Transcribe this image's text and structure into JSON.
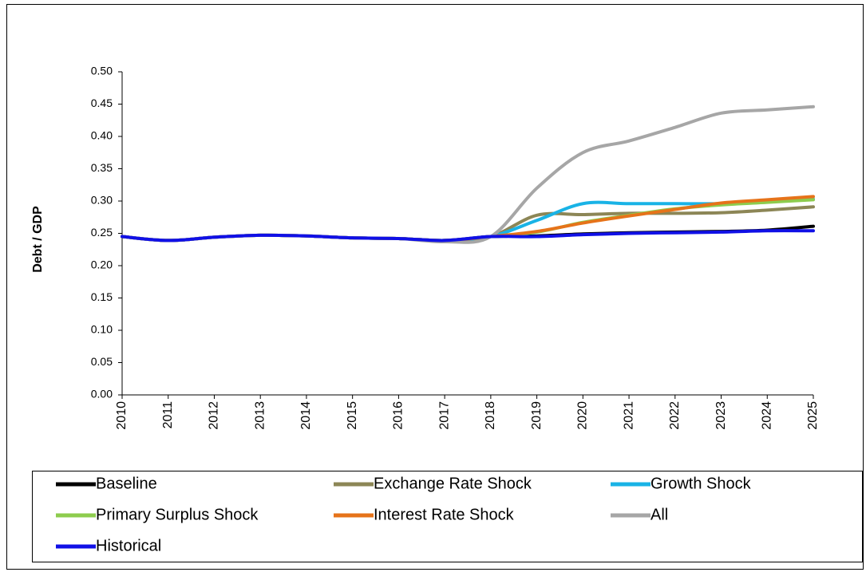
{
  "chart_data": {
    "type": "line",
    "y_label": "Debt / GDP",
    "categories": [
      "2010",
      "2011",
      "2012",
      "2013",
      "2014",
      "2015",
      "2016",
      "2017",
      "2018",
      "2019",
      "2020",
      "2021",
      "2022",
      "2023",
      "2024",
      "2025"
    ],
    "ylim": [
      0,
      0.5
    ],
    "yticks": [
      {
        "value": 0,
        "label": "0.00"
      },
      {
        "value": 0.05,
        "label": "0.05"
      },
      {
        "value": 0.1,
        "label": "0.10"
      },
      {
        "value": 0.15,
        "label": "0.15"
      },
      {
        "value": 0.2,
        "label": "0.20"
      },
      {
        "value": 0.25,
        "label": "0.25"
      },
      {
        "value": 0.3,
        "label": "0.30"
      },
      {
        "value": 0.35,
        "label": "0.35"
      },
      {
        "value": 0.4,
        "label": "0.40"
      },
      {
        "value": 0.45,
        "label": "0.45"
      },
      {
        "value": 0.5,
        "label": "0.50"
      }
    ],
    "series": [
      {
        "name": "Baseline",
        "color": "#000000",
        "values": [
          0.245,
          0.239,
          0.244,
          0.247,
          0.246,
          0.243,
          0.242,
          0.239,
          0.245,
          0.246,
          0.249,
          0.251,
          0.252,
          0.253,
          0.255,
          0.261
        ]
      },
      {
        "name": "Exchange Rate Shock",
        "color": "#8c8656",
        "values": [
          0.245,
          0.239,
          0.244,
          0.247,
          0.246,
          0.243,
          0.242,
          0.239,
          0.245,
          0.278,
          0.279,
          0.281,
          0.281,
          0.282,
          0.286,
          0.291
        ]
      },
      {
        "name": "Growth Shock",
        "color": "#19b3e6",
        "values": [
          0.245,
          0.239,
          0.244,
          0.247,
          0.246,
          0.243,
          0.242,
          0.239,
          0.245,
          0.27,
          0.296,
          0.296,
          0.296,
          0.296,
          0.299,
          0.303
        ]
      },
      {
        "name": "Primary Surplus Shock",
        "color": "#8dcc4e",
        "values": [
          0.245,
          0.239,
          0.244,
          0.247,
          0.246,
          0.243,
          0.242,
          0.239,
          0.245,
          0.252,
          0.267,
          0.278,
          0.288,
          0.294,
          0.298,
          0.302
        ]
      },
      {
        "name": "Interest Rate Shock",
        "color": "#e6731a",
        "values": [
          0.245,
          0.239,
          0.244,
          0.247,
          0.246,
          0.243,
          0.242,
          0.239,
          0.245,
          0.253,
          0.266,
          0.277,
          0.287,
          0.297,
          0.302,
          0.307
        ]
      },
      {
        "name": "All",
        "color": "#a6a6a6",
        "values": [
          0.245,
          0.239,
          0.244,
          0.247,
          0.246,
          0.243,
          0.242,
          0.237,
          0.245,
          0.32,
          0.375,
          0.393,
          0.414,
          0.436,
          0.441,
          0.446
        ]
      },
      {
        "name": "Historical",
        "color": "#1010e6",
        "values": [
          0.245,
          0.239,
          0.244,
          0.247,
          0.246,
          0.243,
          0.242,
          0.239,
          0.245,
          0.245,
          0.248,
          0.25,
          0.251,
          0.252,
          0.254,
          0.254
        ]
      }
    ],
    "legend_columns": 3
  }
}
